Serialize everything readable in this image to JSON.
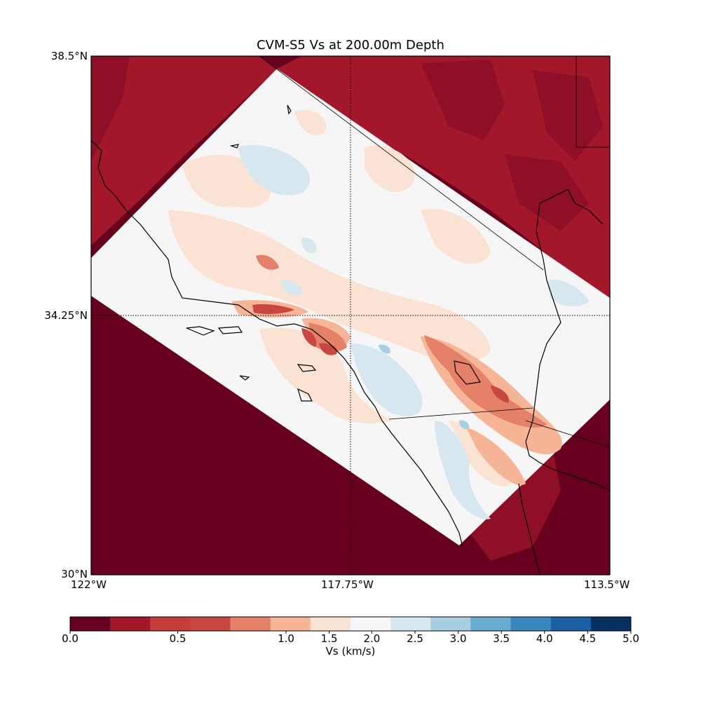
{
  "title": "CVM-S5 Vs at 200.00m Depth",
  "map": {
    "lat_labels": [
      "38.5°N",
      "34.25°N",
      "30°N"
    ],
    "lon_labels": [
      "122°W",
      "117.75°W",
      "113.5°W"
    ],
    "extent": {
      "lon_min": -122.0,
      "lon_max": -113.5,
      "lat_min": 30.0,
      "lat_max": 38.5
    }
  },
  "colorbar": {
    "label": "Vs (km/s)",
    "tick_labels": [
      "0.0",
      "0.5",
      "1.0",
      "1.5",
      "2.0",
      "2.5",
      "3.0",
      "3.5",
      "4.0",
      "4.5",
      "5.0"
    ],
    "colors": [
      "#67001f",
      "#a2172a",
      "#c53c3d",
      "#c94741",
      "#e58168",
      "#f5b596",
      "#fbe3d4",
      "#f7f7f7",
      "#d6e7f0",
      "#a7cfe4",
      "#6aacd0",
      "#3a87bd",
      "#1c5fa4",
      "#053061"
    ]
  },
  "legend_colors": {
    "outside_model": "#67001f",
    "outside_texture": "#a2172a",
    "model_background": "#f6f6f6",
    "slow_light": "#fbe3d4",
    "slow_mid": "#f5b596",
    "slow_strong": "#e58168",
    "slow_deep": "#c94741",
    "fast_light": "#d6e7f0",
    "fast_mid": "#a7cfe4"
  }
}
